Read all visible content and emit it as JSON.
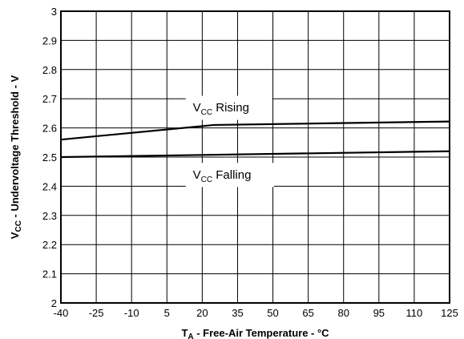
{
  "chart_data": {
    "type": "line",
    "xlabel": {
      "main": "T",
      "sub": "A",
      "rest": " - Free-Air Temperature - °C"
    },
    "ylabel": {
      "main": "V",
      "sub": "CC",
      "rest": " - Undervoltage Threshold - V"
    },
    "xlim": [
      -40,
      125
    ],
    "ylim": [
      2,
      3
    ],
    "xticks": [
      -40,
      -25,
      -10,
      5,
      20,
      35,
      50,
      65,
      80,
      95,
      110,
      125
    ],
    "yticks": [
      2,
      2.1,
      2.2,
      2.3,
      2.4,
      2.5,
      2.6,
      2.7,
      2.8,
      2.9,
      3
    ],
    "ytick_labels": [
      "2",
      "2.1",
      "2.2",
      "2.3",
      "2.4",
      "2.5",
      "2.6",
      "2.7",
      "2.8",
      "2.9",
      "3"
    ],
    "grid": true,
    "series": [
      {
        "name": {
          "main": "V",
          "sub": "CC",
          "rest": " Rising"
        },
        "x": [
          -40,
          25,
          125
        ],
        "y": [
          2.56,
          2.61,
          2.622
        ]
      },
      {
        "name": {
          "main": "V",
          "sub": "CC",
          "rest": " Falling"
        },
        "x": [
          -40,
          125
        ],
        "y": [
          2.5,
          2.52
        ]
      }
    ]
  }
}
